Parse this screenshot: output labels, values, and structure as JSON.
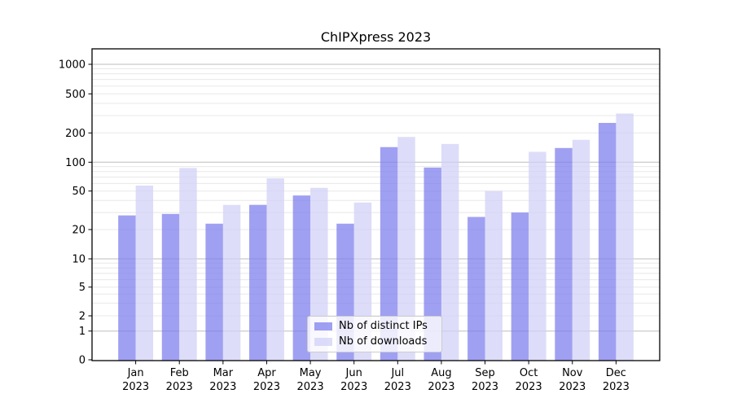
{
  "chart_data": {
    "type": "bar",
    "title": "ChIPXpress 2023",
    "categories": [
      "Jan",
      "Feb",
      "Mar",
      "Apr",
      "May",
      "Jun",
      "Jul",
      "Aug",
      "Sep",
      "Oct",
      "Nov",
      "Dec"
    ],
    "xtick_second_line": "2023",
    "series": [
      {
        "name": "Nb of distinct IPs",
        "color": "#7b7bed",
        "values": [
          28,
          29,
          23,
          36,
          45,
          23,
          143,
          88,
          27,
          30,
          140,
          253
        ]
      },
      {
        "name": "Nb of downloads",
        "color": "#d0d0f6",
        "values": [
          57,
          87,
          36,
          68,
          54,
          38,
          182,
          154,
          50,
          128,
          170,
          315
        ]
      }
    ],
    "bar_opacity": 0.72,
    "yscale": "asinh-log (shows 0 with log-spaced decades)",
    "yticks": [
      0,
      1,
      2,
      5,
      10,
      20,
      50,
      100,
      200,
      500,
      1000
    ],
    "ylim": [
      0,
      1400
    ],
    "xlabel": "",
    "ylabel": "",
    "grid": true,
    "legend_position": "inside lower-center"
  }
}
